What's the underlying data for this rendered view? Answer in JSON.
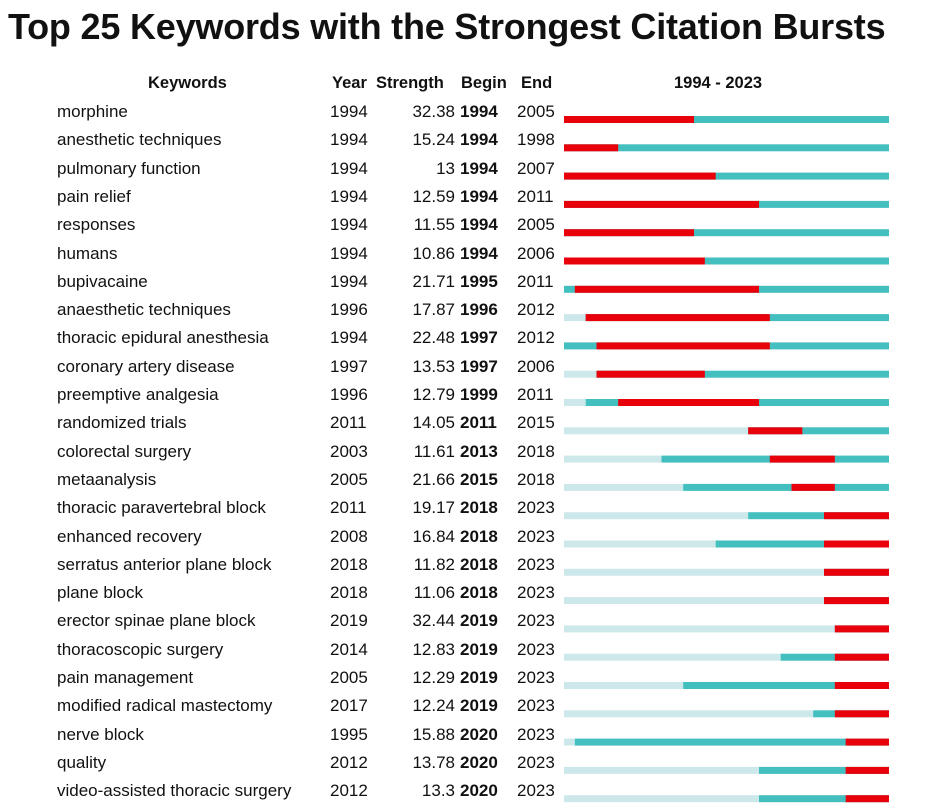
{
  "title": "Top 25 Keywords with the Strongest Citation Bursts",
  "headers": {
    "keywords": "Keywords",
    "year": "Year",
    "strength": "Strength",
    "begin": "Begin",
    "end": "End",
    "range": "1994 - 2023"
  },
  "colors": {
    "burst": "#e8000b",
    "active": "#43bfbf",
    "inactive": "#cde8ea"
  },
  "chart_data": {
    "type": "table",
    "title": "Top 25 Keywords with the Strongest Citation Bursts",
    "x_range": [
      1994,
      2023
    ],
    "columns": [
      "Keywords",
      "Year",
      "Strength",
      "Begin",
      "End",
      "1994 - 2023"
    ],
    "rows": [
      {
        "keyword": "morphine",
        "year": "1994",
        "strength": "32.38",
        "begin": "1994",
        "end": "2005"
      },
      {
        "keyword": "anesthetic techniques",
        "year": "1994",
        "strength": "15.24",
        "begin": "1994",
        "end": "1998"
      },
      {
        "keyword": "pulmonary function",
        "year": "1994",
        "strength": "13",
        "begin": "1994",
        "end": "2007"
      },
      {
        "keyword": "pain relief",
        "year": "1994",
        "strength": "12.59",
        "begin": "1994",
        "end": "2011"
      },
      {
        "keyword": "responses",
        "year": "1994",
        "strength": "11.55",
        "begin": "1994",
        "end": "2005"
      },
      {
        "keyword": "humans",
        "year": "1994",
        "strength": "10.86",
        "begin": "1994",
        "end": "2006"
      },
      {
        "keyword": "bupivacaine",
        "year": "1994",
        "strength": "21.71",
        "begin": "1995",
        "end": "2011"
      },
      {
        "keyword": "anaesthetic techniques",
        "year": "1996",
        "strength": "17.87",
        "begin": "1996",
        "end": "2012"
      },
      {
        "keyword": "thoracic epidural anesthesia",
        "year": "1994",
        "strength": "22.48",
        "begin": "1997",
        "end": "2012"
      },
      {
        "keyword": "coronary artery disease",
        "year": "1997",
        "strength": "13.53",
        "begin": "1997",
        "end": "2006"
      },
      {
        "keyword": "preemptive analgesia",
        "year": "1996",
        "strength": "12.79",
        "begin": "1999",
        "end": "2011"
      },
      {
        "keyword": "randomized trials",
        "year": "2011",
        "strength": "14.05",
        "begin": "2011",
        "end": "2015"
      },
      {
        "keyword": "colorectal surgery",
        "year": "2003",
        "strength": "11.61",
        "begin": "2013",
        "end": "2018"
      },
      {
        "keyword": "metaanalysis",
        "year": "2005",
        "strength": "21.66",
        "begin": "2015",
        "end": "2018"
      },
      {
        "keyword": "thoracic paravertebral block",
        "year": "2011",
        "strength": "19.17",
        "begin": "2018",
        "end": "2023"
      },
      {
        "keyword": "enhanced recovery",
        "year": "2008",
        "strength": "16.84",
        "begin": "2018",
        "end": "2023"
      },
      {
        "keyword": "serratus anterior plane block",
        "year": "2018",
        "strength": "11.82",
        "begin": "2018",
        "end": "2023"
      },
      {
        "keyword": "plane block",
        "year": "2018",
        "strength": "11.06",
        "begin": "2018",
        "end": "2023"
      },
      {
        "keyword": "erector spinae plane block",
        "year": "2019",
        "strength": "32.44",
        "begin": "2019",
        "end": "2023"
      },
      {
        "keyword": "thoracoscopic surgery",
        "year": "2014",
        "strength": "12.83",
        "begin": "2019",
        "end": "2023"
      },
      {
        "keyword": "pain management",
        "year": "2005",
        "strength": "12.29",
        "begin": "2019",
        "end": "2023"
      },
      {
        "keyword": "modified radical mastectomy",
        "year": "2017",
        "strength": "12.24",
        "begin": "2019",
        "end": "2023"
      },
      {
        "keyword": "nerve block",
        "year": "1995",
        "strength": "15.88",
        "begin": "2020",
        "end": "2023"
      },
      {
        "keyword": "quality",
        "year": "2012",
        "strength": "13.78",
        "begin": "2020",
        "end": "2023"
      },
      {
        "keyword": "video-assisted thoracic surgery",
        "year": "2012",
        "strength": "13.3",
        "begin": "2020",
        "end": "2023"
      }
    ]
  }
}
